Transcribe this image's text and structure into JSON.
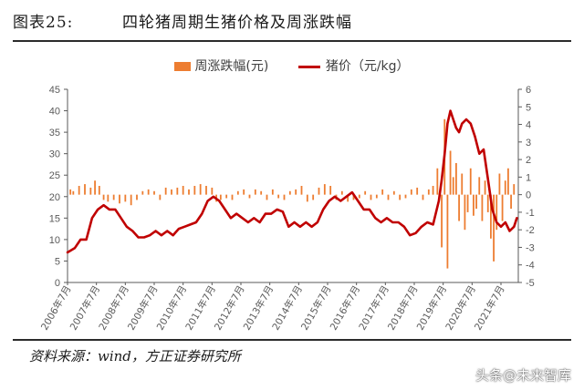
{
  "header": {
    "figure_no": "图表25:",
    "title": "四轮猪周期生猪价格及周涨跌幅"
  },
  "source": "资料来源：wind，方正证券研究所",
  "watermark": "头条@未来智库",
  "colors": {
    "bar": "#ED7D31",
    "line": "#C00000",
    "axis": "#595959",
    "text": "#595959"
  },
  "chart_data": {
    "type": "bar+line",
    "legend_position": "top",
    "grid": false,
    "x_tick_labels": [
      "2006年7月",
      "2007年7月",
      "2008年7月",
      "2009年7月",
      "2010年7月",
      "2011年7月",
      "2012年7月",
      "2013年7月",
      "2014年7月",
      "2015年7月",
      "2016年7月",
      "2017年7月",
      "2018年7月",
      "2019年7月",
      "2020年7月",
      "2021年7月"
    ],
    "x_range": [
      2006.5,
      2022.1
    ],
    "y_left": {
      "min": 0,
      "max": 45,
      "ticks": [
        0,
        5,
        10,
        15,
        20,
        25,
        30,
        35,
        40,
        45
      ]
    },
    "y_right": {
      "min": -5,
      "max": 6,
      "ticks": [
        -5,
        -4,
        -3,
        -2,
        -1,
        0,
        1,
        2,
        3,
        4,
        5,
        6
      ]
    },
    "series": [
      {
        "name": "周涨跌幅(元)",
        "kind": "bar",
        "axis": "right",
        "x": [
          2006.6,
          2006.7,
          2006.9,
          2007.1,
          2007.3,
          2007.45,
          2007.6,
          2007.75,
          2007.9,
          2008.1,
          2008.3,
          2008.5,
          2008.7,
          2008.9,
          2009.1,
          2009.3,
          2009.5,
          2009.7,
          2009.9,
          2010.1,
          2010.3,
          2010.5,
          2010.7,
          2010.9,
          2011.1,
          2011.3,
          2011.5,
          2011.65,
          2011.8,
          2012.0,
          2012.2,
          2012.4,
          2012.6,
          2012.8,
          2013.0,
          2013.2,
          2013.4,
          2013.6,
          2013.8,
          2014.0,
          2014.2,
          2014.4,
          2014.6,
          2014.8,
          2015.0,
          2015.2,
          2015.4,
          2015.6,
          2015.8,
          2016.0,
          2016.2,
          2016.4,
          2016.6,
          2016.8,
          2017.0,
          2017.2,
          2017.4,
          2017.6,
          2017.8,
          2018.0,
          2018.2,
          2018.4,
          2018.6,
          2018.8,
          2019.0,
          2019.15,
          2019.3,
          2019.45,
          2019.55,
          2019.65,
          2019.75,
          2019.85,
          2019.95,
          2020.05,
          2020.15,
          2020.25,
          2020.35,
          2020.45,
          2020.55,
          2020.65,
          2020.75,
          2020.85,
          2020.95,
          2021.05,
          2021.15,
          2021.25,
          2021.35,
          2021.45,
          2021.55,
          2021.65,
          2021.75,
          2021.85,
          2021.95
        ],
        "values": [
          0.3,
          0.2,
          0.5,
          0.6,
          0.4,
          0.8,
          0.5,
          -0.3,
          -0.4,
          -0.3,
          -0.5,
          -0.4,
          -0.6,
          -0.3,
          0.2,
          0.3,
          0.2,
          -0.3,
          0.4,
          0.3,
          0.4,
          0.5,
          0.3,
          0.5,
          0.6,
          0.5,
          0.4,
          -0.4,
          -0.3,
          -0.2,
          -0.3,
          0.2,
          0.3,
          -0.2,
          0.3,
          0.2,
          -0.3,
          0.3,
          -0.2,
          -0.3,
          0.2,
          0.3,
          0.5,
          -0.4,
          -0.3,
          0.4,
          0.6,
          0.5,
          -0.3,
          0.2,
          -0.4,
          -0.3,
          -0.2,
          0.2,
          -0.3,
          -0.2,
          0.3,
          -0.3,
          0.2,
          -0.3,
          -0.2,
          0.3,
          0.4,
          -0.3,
          0.3,
          0.5,
          1.5,
          -3.0,
          4.3,
          -4.2,
          2.5,
          1.0,
          1.8,
          -1.5,
          1.2,
          -2.0,
          -1.0,
          1.5,
          -1.2,
          -0.8,
          1.0,
          -1.5,
          0.8,
          -1.0,
          -2.5,
          -3.8,
          -2.0,
          1.2,
          -1.5,
          0.8,
          1.5,
          -0.8,
          0.6
        ]
      },
      {
        "name": "猪价（元/kg）",
        "kind": "line",
        "axis": "left",
        "x": [
          2006.5,
          2006.75,
          2006.95,
          2007.15,
          2007.35,
          2007.55,
          2007.75,
          2007.95,
          2008.15,
          2008.35,
          2008.55,
          2008.75,
          2008.95,
          2009.15,
          2009.35,
          2009.55,
          2009.75,
          2009.95,
          2010.15,
          2010.35,
          2010.55,
          2010.75,
          2010.95,
          2011.15,
          2011.35,
          2011.55,
          2011.75,
          2011.95,
          2012.15,
          2012.35,
          2012.55,
          2012.75,
          2012.95,
          2013.15,
          2013.35,
          2013.55,
          2013.75,
          2013.95,
          2014.15,
          2014.35,
          2014.55,
          2014.75,
          2014.95,
          2015.15,
          2015.35,
          2015.55,
          2015.75,
          2015.95,
          2016.15,
          2016.35,
          2016.55,
          2016.75,
          2016.95,
          2017.15,
          2017.35,
          2017.55,
          2017.75,
          2017.95,
          2018.15,
          2018.35,
          2018.55,
          2018.75,
          2018.95,
          2019.15,
          2019.35,
          2019.45,
          2019.55,
          2019.65,
          2019.75,
          2019.85,
          2019.95,
          2020.05,
          2020.15,
          2020.3,
          2020.45,
          2020.6,
          2020.75,
          2020.9,
          2021.05,
          2021.2,
          2021.35,
          2021.5,
          2021.65,
          2021.8,
          2021.95,
          2022.05
        ],
        "values": [
          7,
          8,
          10,
          10,
          15,
          17,
          18,
          17,
          17,
          15,
          13,
          12,
          10.5,
          10.5,
          11,
          12,
          11,
          12,
          11,
          12.5,
          13,
          13.5,
          14,
          16,
          19,
          20,
          19,
          17,
          15,
          16,
          15,
          14,
          15,
          14,
          16,
          16,
          17,
          16.5,
          13,
          14,
          13,
          14,
          13,
          14,
          17,
          19,
          20,
          19,
          20,
          21,
          19,
          17,
          17,
          15,
          14,
          15,
          14,
          14,
          13,
          11,
          11.5,
          13,
          14,
          13.5,
          19,
          24,
          30,
          37,
          40,
          38,
          36,
          35,
          37,
          38,
          37,
          34,
          30,
          31,
          24,
          17,
          14,
          13,
          14,
          12,
          13,
          15
        ]
      }
    ]
  }
}
